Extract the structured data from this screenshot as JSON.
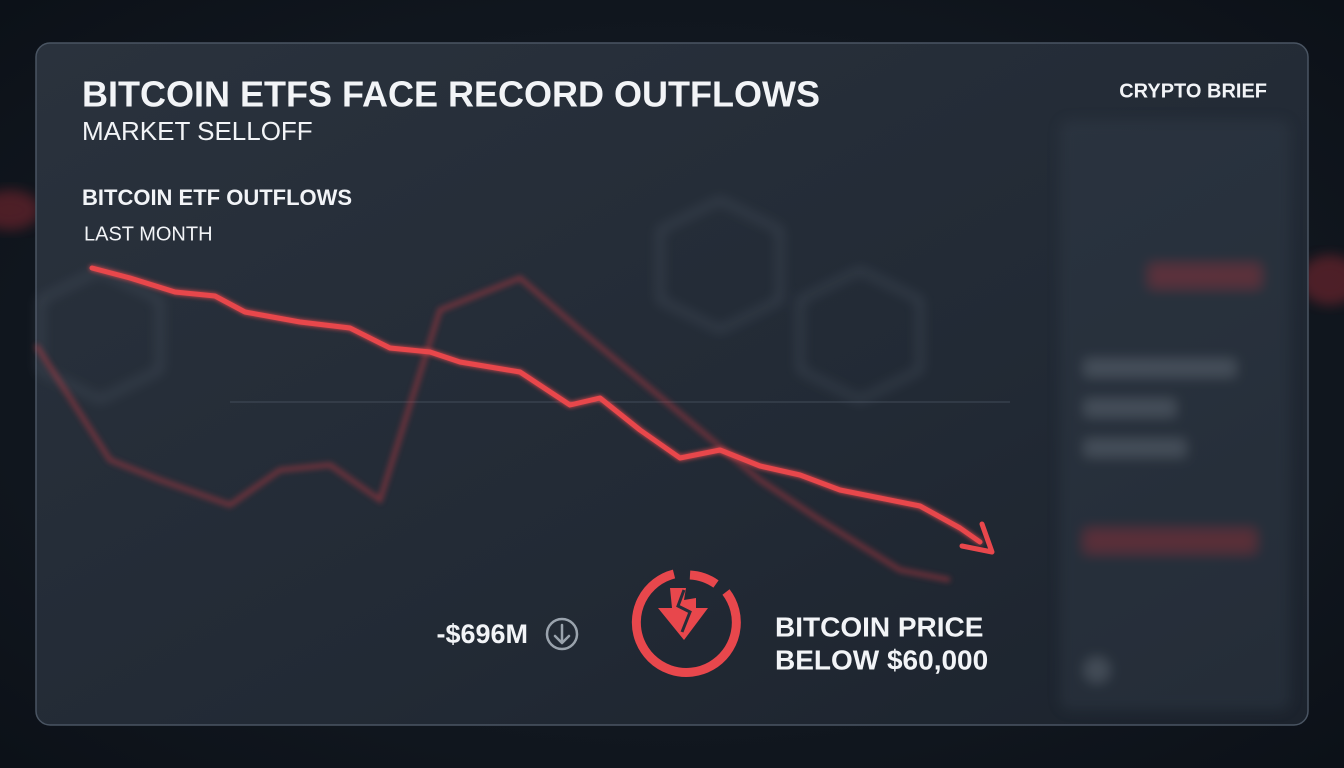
{
  "header": {
    "title": "BITCOIN ETFS FACE RECORD OUTFLOWS",
    "subtitle": "MARKET SELLOFF",
    "brand": "CRYPTO BRIEF"
  },
  "section": {
    "title": "BITCOIN ETF OUTFLOWS",
    "subtitle": "LAST MONTH"
  },
  "stats": {
    "outflow": "-$696M",
    "price_line1": "BITCOIN PRICE",
    "price_line2": "BELOW $60,000"
  }
}
